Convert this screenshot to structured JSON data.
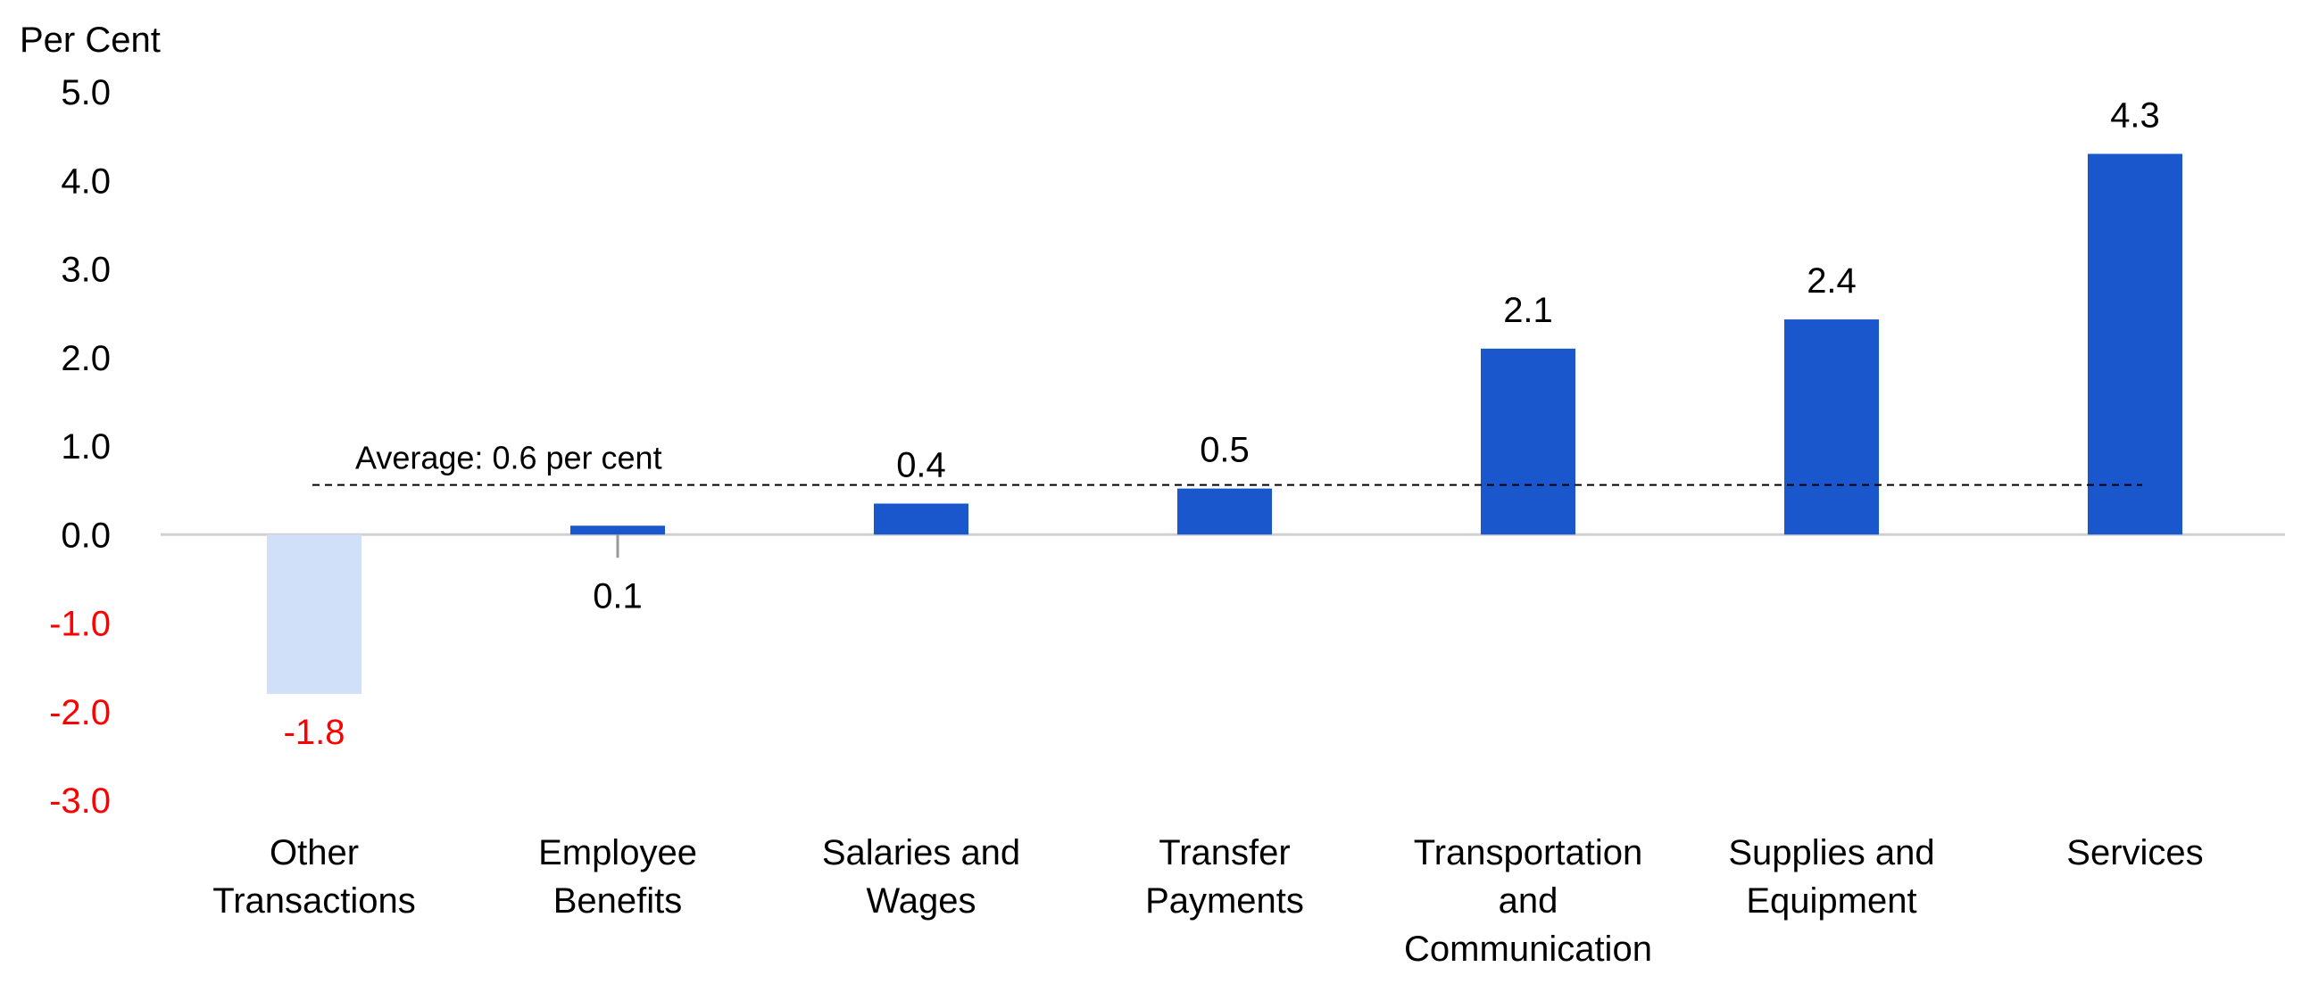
{
  "chart_data": {
    "type": "bar",
    "ylabel": "Per Cent",
    "ylim": [
      -3.0,
      5.0
    ],
    "yticks": [
      5.0,
      4.0,
      3.0,
      2.0,
      1.0,
      0.0,
      -1.0,
      -2.0,
      -3.0
    ],
    "categories": [
      [
        "Other",
        "Transactions"
      ],
      [
        "Employee",
        "Benefits"
      ],
      [
        "Salaries and",
        "Wages"
      ],
      [
        "Transfer",
        "Payments"
      ],
      [
        "Transportation",
        "and",
        "Communication"
      ],
      [
        "Supplies and",
        "Equipment"
      ],
      [
        "Services"
      ]
    ],
    "values": [
      -1.8,
      0.1,
      0.35,
      0.52,
      2.1,
      2.43,
      4.3
    ],
    "data_labels": [
      "-1.8",
      "0.1",
      "0.4",
      "0.5",
      "2.1",
      "2.4",
      "4.3"
    ],
    "average": {
      "value": 0.56,
      "label": "Average: 0.6 per cent"
    },
    "grid": false,
    "legend": "none",
    "colors": {
      "positive_bar": "#1a56cc",
      "negative_bar": "#cfe0f8",
      "negative_text": "#ff0000",
      "text": "#000000",
      "zero_line": "#d0d0d0"
    }
  }
}
